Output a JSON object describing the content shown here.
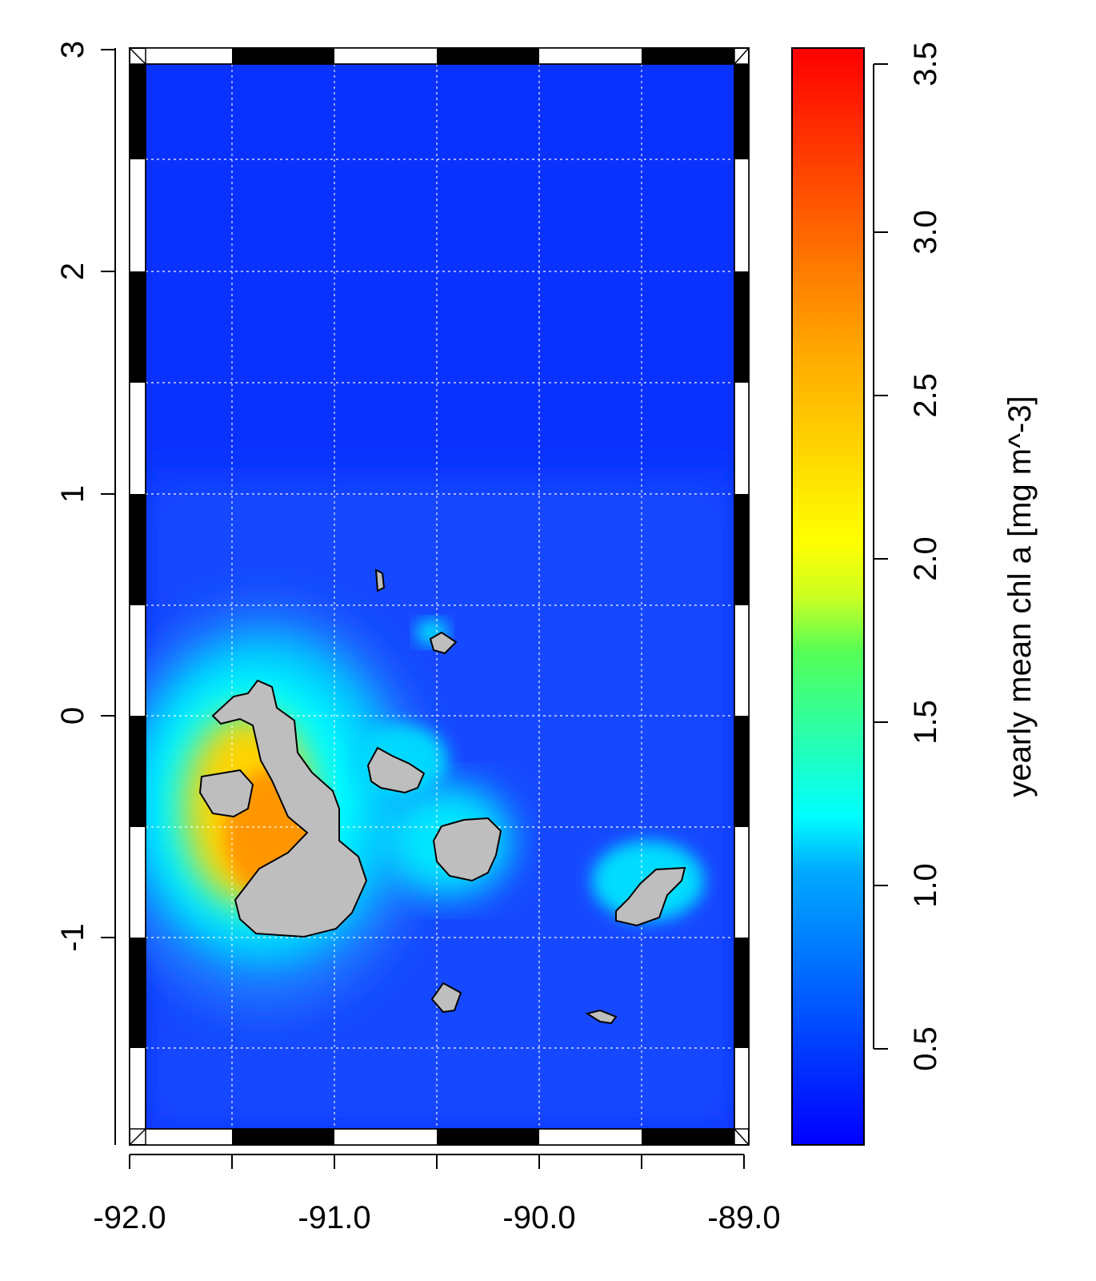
{
  "map": {
    "type": "raster map",
    "x_ticks": [
      "-92.0",
      "-91.0",
      "-90.0",
      "-89.0"
    ],
    "x_tick_values": [
      -92,
      -91,
      -90,
      -89
    ],
    "y_ticks": [
      "-1",
      "0",
      "1",
      "2",
      "3"
    ],
    "y_tick_values": [
      -1,
      0,
      1,
      2,
      3
    ],
    "xlim": [
      -92.0,
      -89.0
    ],
    "ylim": [
      -2.0,
      3.0
    ],
    "grid": "dotted, every 0.5 degree",
    "land_color": "#bebebe",
    "colormap": [
      "#0000ff",
      "#0055ff",
      "#00aaff",
      "#00ffff",
      "#55ff55",
      "#ffff00",
      "#ffaa00",
      "#ff5500",
      "#ff0000"
    ]
  },
  "colorbar": {
    "label": "yearly mean chl a [mg m^-3]",
    "ticks": [
      "0.5",
      "1.0",
      "1.5",
      "2.0",
      "2.5",
      "3.0",
      "3.5"
    ],
    "tick_values": [
      0.5,
      1.0,
      1.5,
      2.0,
      2.5,
      3.0,
      3.5
    ],
    "range": [
      0.15,
      3.55
    ]
  }
}
